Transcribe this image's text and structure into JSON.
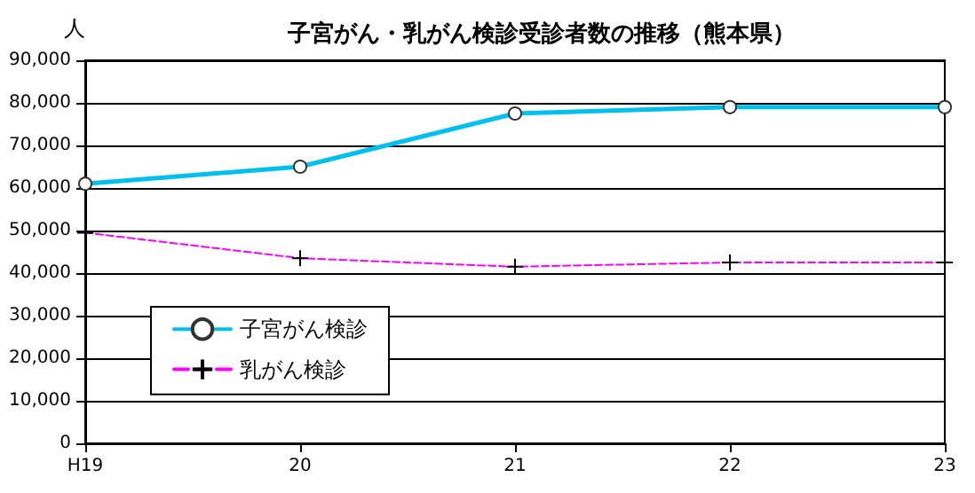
{
  "chart_data": {
    "type": "line",
    "title": "子宮がん・乳がん検診受診者数の推移（熊本県）",
    "ylabel": "人",
    "categories": [
      "H19",
      "20",
      "21",
      "22",
      "23"
    ],
    "series": [
      {
        "name": "子宮がん検診",
        "color": "#00c0f0",
        "values": [
          61000,
          65000,
          77500,
          79000,
          79000
        ],
        "marker": "circle",
        "line_style": "solid"
      },
      {
        "name": "乳がん検診",
        "color": "#ff00ff",
        "values": [
          49500,
          43500,
          41500,
          42500,
          42500
        ],
        "marker": "cross",
        "line_style": "dashed"
      }
    ],
    "ylim": [
      0,
      90000
    ],
    "yticks": [
      0,
      {
        "value": 10000,
        "label": "10,000"
      },
      {
        "value": 20000,
        "label": "20,000"
      },
      {
        "value": 30000,
        "label": "30,000"
      },
      {
        "value": 40000,
        "label": "40,000"
      },
      {
        "value": 50000,
        "label": "50,000"
      },
      {
        "value": 60000,
        "label": "60,000"
      },
      {
        "value": 70000,
        "label": "70,000"
      },
      {
        "value": 80000,
        "label": "80,000"
      },
      {
        "value": 90000,
        "label": "90,000"
      }
    ],
    "grid": "y",
    "legend": "left"
  }
}
